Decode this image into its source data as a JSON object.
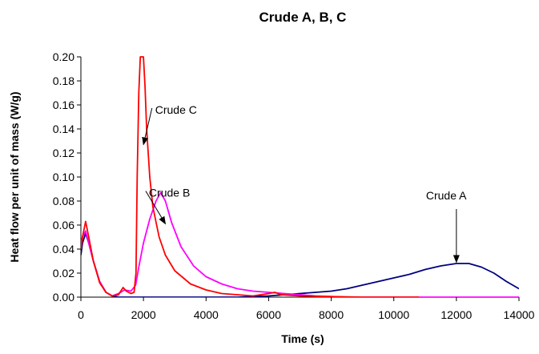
{
  "chart_data": {
    "type": "line",
    "title": "Crude A, B, C",
    "xlabel": "Time (s)",
    "ylabel": "Heat flow per unit of mass (W/g)",
    "xlim": [
      0,
      14000
    ],
    "ylim": [
      0,
      0.2
    ],
    "x_ticks": [
      "0",
      "2000",
      "4000",
      "6000",
      "8000",
      "10000",
      "12000",
      "14000"
    ],
    "y_ticks": [
      "0.00",
      "0.02",
      "0.04",
      "0.06",
      "0.08",
      "0.10",
      "0.12",
      "0.14",
      "0.16",
      "0.18",
      "0.20"
    ],
    "grid": false,
    "legend": "none",
    "series": [
      {
        "name": "Crude A",
        "color": "#000080",
        "x": [
          0,
          50,
          150,
          250,
          400,
          600,
          800,
          1000,
          1200,
          1500,
          2000,
          3000,
          4000,
          5000,
          5500,
          6000,
          6500,
          7000,
          7500,
          8000,
          8500,
          9000,
          9500,
          10000,
          10500,
          11000,
          11500,
          12000,
          12400,
          12800,
          13200,
          13600,
          14000
        ],
        "y": [
          0.035,
          0.045,
          0.053,
          0.045,
          0.03,
          0.013,
          0.004,
          0.001,
          0.0,
          0.0,
          0.0,
          0.0,
          0.0,
          0.0,
          0.0005,
          0.001,
          0.002,
          0.003,
          0.004,
          0.005,
          0.007,
          0.01,
          0.013,
          0.016,
          0.019,
          0.023,
          0.026,
          0.028,
          0.028,
          0.025,
          0.02,
          0.013,
          0.007
        ]
      },
      {
        "name": "Crude B",
        "color": "#ff00ff",
        "x": [
          0,
          50,
          150,
          250,
          400,
          600,
          800,
          1000,
          1200,
          1400,
          1600,
          1750,
          1850,
          2000,
          2200,
          2400,
          2550,
          2700,
          2900,
          3200,
          3600,
          4000,
          4500,
          5000,
          5500,
          6000,
          6500,
          7000,
          7500,
          8000,
          8500,
          9000,
          10000,
          11000,
          12000,
          14000
        ],
        "y": [
          0.045,
          0.05,
          0.055,
          0.045,
          0.03,
          0.013,
          0.004,
          0.001,
          0.003,
          0.006,
          0.005,
          0.01,
          0.025,
          0.045,
          0.065,
          0.08,
          0.087,
          0.08,
          0.062,
          0.042,
          0.026,
          0.017,
          0.011,
          0.007,
          0.005,
          0.004,
          0.003,
          0.002,
          0.001,
          0.0005,
          0.0,
          0.0,
          0.0,
          0.0,
          0.0,
          0.0
        ]
      },
      {
        "name": "Crude C",
        "color": "#ff0000",
        "x": [
          0,
          50,
          150,
          250,
          400,
          600,
          800,
          1000,
          1200,
          1350,
          1450,
          1600,
          1700,
          1760,
          1800,
          1850,
          1900,
          1950,
          2000,
          2050,
          2100,
          2200,
          2300,
          2500,
          2700,
          3000,
          3500,
          4000,
          4500,
          5000,
          5500,
          6000,
          6200,
          6400,
          7000,
          8000,
          9000,
          10000,
          10800
        ],
        "y": [
          0.04,
          0.05,
          0.063,
          0.05,
          0.03,
          0.012,
          0.004,
          0.001,
          0.002,
          0.008,
          0.005,
          0.003,
          0.004,
          0.02,
          0.1,
          0.17,
          0.2,
          0.2,
          0.2,
          0.175,
          0.14,
          0.1,
          0.075,
          0.05,
          0.035,
          0.022,
          0.011,
          0.006,
          0.003,
          0.002,
          0.001,
          0.003,
          0.004,
          0.002,
          0.001,
          0.0005,
          0.0,
          0.0,
          0.0
        ]
      }
    ],
    "annotations": [
      {
        "text": "Crude C",
        "series": "Crude C",
        "arrow_to": [
          2000,
          0.127
        ],
        "text_at": [
          3500,
          0.156
        ]
      },
      {
        "text": "Crude B",
        "series": "Crude B",
        "arrow_to": [
          2700,
          0.061
        ],
        "text_at": [
          3300,
          0.087
        ]
      },
      {
        "text": "Crude A",
        "series": "Crude A",
        "arrow_to": [
          12000,
          0.029
        ],
        "text_at": [
          12000,
          0.08
        ]
      }
    ]
  }
}
